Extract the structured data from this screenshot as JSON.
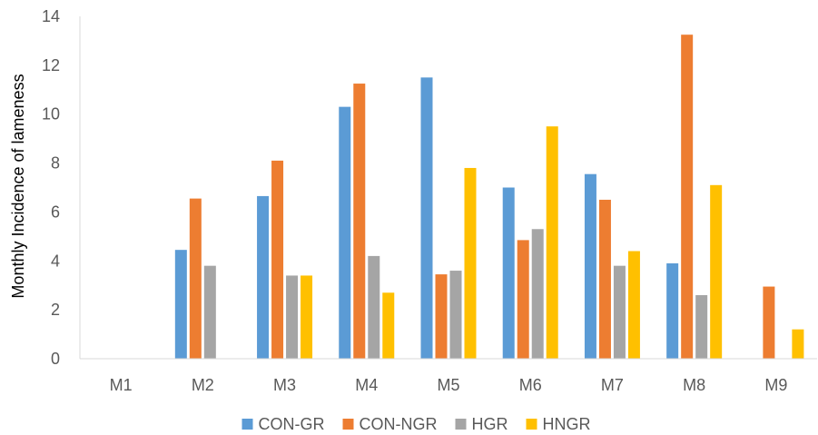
{
  "chart_data": {
    "type": "bar",
    "title": "",
    "xlabel": "",
    "ylabel": "Monthly Incidence of lameness",
    "ylim": [
      0,
      14
    ],
    "yticks": [
      0,
      2,
      4,
      6,
      8,
      10,
      12,
      14
    ],
    "grid": false,
    "legend_position": "bottom",
    "categories": [
      "M1",
      "M2",
      "M3",
      "M4",
      "M5",
      "M6",
      "M7",
      "M8",
      "M9"
    ],
    "series": [
      {
        "name": "CON-GR",
        "color": "#5b9bd5",
        "values": [
          0,
          4.45,
          6.65,
          10.3,
          11.5,
          7.0,
          7.55,
          3.9,
          0
        ]
      },
      {
        "name": "CON-NGR",
        "color": "#ed7d31",
        "values": [
          0,
          6.55,
          8.1,
          11.25,
          3.45,
          4.85,
          6.5,
          13.25,
          2.95
        ]
      },
      {
        "name": "HGR",
        "color": "#a5a5a5",
        "values": [
          0,
          3.8,
          3.4,
          4.2,
          3.6,
          5.3,
          3.8,
          2.6,
          0
        ]
      },
      {
        "name": "HNGR",
        "color": "#ffc000",
        "values": [
          0,
          0,
          3.4,
          2.7,
          7.8,
          9.5,
          4.4,
          7.1,
          1.2
        ]
      }
    ]
  }
}
